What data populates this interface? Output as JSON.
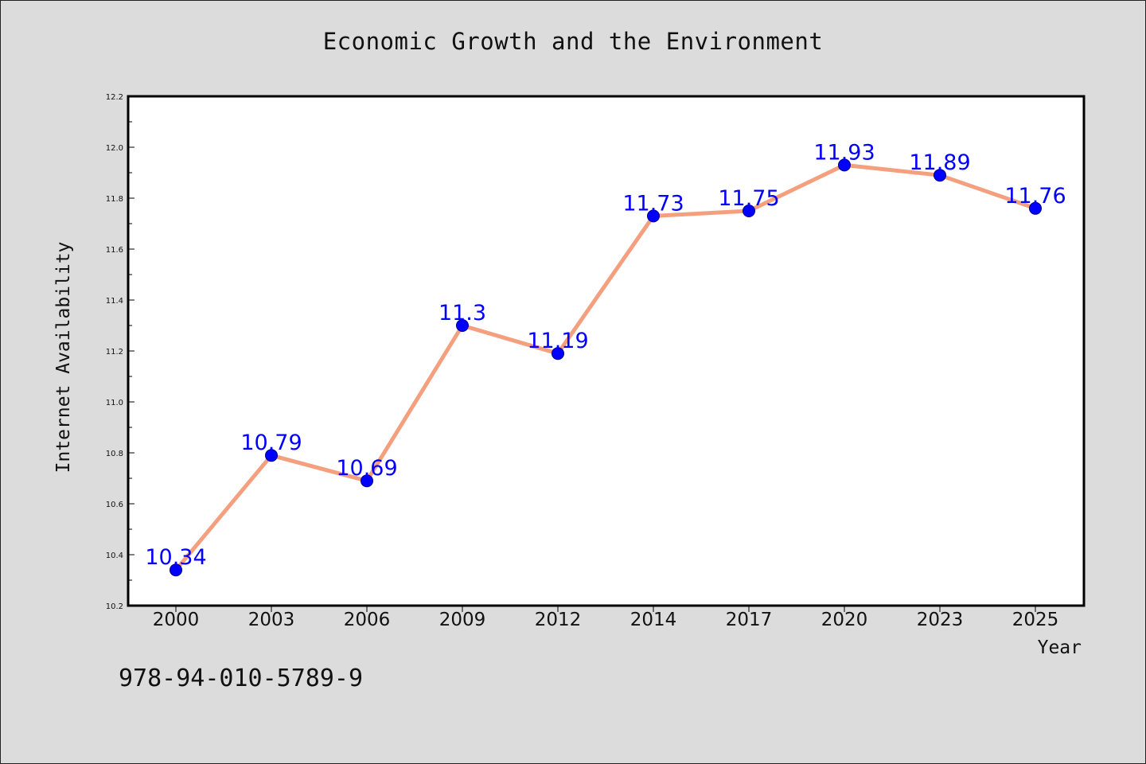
{
  "chart_data": {
    "type": "line",
    "title": "Economic Growth and the Environment",
    "xlabel": "Year",
    "ylabel": "Internet Availability",
    "categories": [
      "2000",
      "2003",
      "2006",
      "2009",
      "2012",
      "2014",
      "2017",
      "2020",
      "2023",
      "2025"
    ],
    "series": [
      {
        "values": [
          10.34,
          10.79,
          10.69,
          11.3,
          11.19,
          11.73,
          11.75,
          11.93,
          11.89,
          11.76
        ],
        "labels": [
          "10.34",
          "10.79",
          "10.69",
          "11.3",
          "11.19",
          "11.73",
          "11.75",
          "11.93",
          "11.89",
          "11.76"
        ],
        "line_color": "#f4a07f",
        "marker_color": "#0000ff"
      }
    ],
    "ylim": [
      10.2,
      12.2
    ],
    "yticks": [
      "10.2",
      "10.4",
      "10.6",
      "10.8",
      "11.0",
      "11.2",
      "11.4",
      "11.6",
      "11.8",
      "12.0",
      "12.2"
    ],
    "grid": false,
    "legend": "none"
  },
  "footer": {
    "isbn": "978-94-010-5789-9"
  },
  "colors": {
    "background": "#dcdcdc",
    "plot_background": "#ffffff",
    "line": "#f4a07f",
    "markers": "#0000ff",
    "data_labels": "#0000ff"
  }
}
